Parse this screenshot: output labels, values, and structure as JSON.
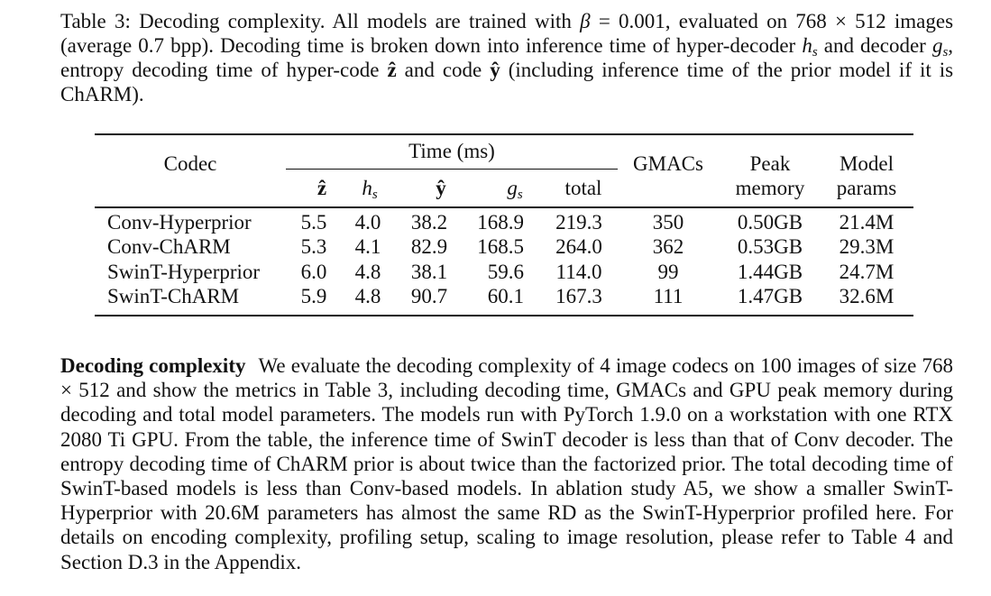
{
  "caption": {
    "label": "Table 3:",
    "title": "Decoding complexity.",
    "s1": "All models are trained with",
    "beta_sym": "β",
    "eq": "=",
    "beta_val": "0.001",
    "s2": ", evaluated on 768 × 512 images (average 0.7 bpp). Decoding time is broken down into inference time of hyper-decoder",
    "hs_base": "h",
    "hs_sub": "s",
    "s3": "and decoder",
    "gs_base": "g",
    "gs_sub": "s",
    "s4": ", entropy decoding time of hyper-code",
    "zhat": "ẑ",
    "s5": "and code",
    "yhat": "ŷ",
    "s6": "(including inference time of the prior model if it is ChARM)."
  },
  "table": {
    "header": {
      "codec": "Codec",
      "time_group": "Time (ms)",
      "gmacs": "GMACs",
      "peak_line1": "Peak",
      "peak_line2": "memory",
      "model_line1": "Model",
      "model_line2": "params",
      "col_z": "ẑ",
      "col_hs_base": "h",
      "col_hs_sub": "s",
      "col_y": "ŷ",
      "col_gs_base": "g",
      "col_gs_sub": "s",
      "col_total": "total"
    },
    "rows": [
      {
        "codec": "Conv-Hyperprior",
        "z": "5.5",
        "hs": "4.0",
        "y": "38.2",
        "gs": "168.9",
        "total": "219.3",
        "gmacs": "350",
        "peak": "0.50GB",
        "params": "21.4M"
      },
      {
        "codec": "Conv-ChARM",
        "z": "5.3",
        "hs": "4.1",
        "y": "82.9",
        "gs": "168.5",
        "total": "264.0",
        "gmacs": "362",
        "peak": "0.53GB",
        "params": "29.3M"
      },
      {
        "codec": "SwinT-Hyperprior",
        "z": "6.0",
        "hs": "4.8",
        "y": "38.1",
        "gs": "59.6",
        "total": "114.0",
        "gmacs": "99",
        "peak": "1.44GB",
        "params": "24.7M"
      },
      {
        "codec": "SwinT-ChARM",
        "z": "5.9",
        "hs": "4.8",
        "y": "90.7",
        "gs": "60.1",
        "total": "167.3",
        "gmacs": "111",
        "peak": "1.47GB",
        "params": "32.6M"
      }
    ]
  },
  "paragraph": {
    "heading": "Decoding complexity",
    "body": "We evaluate the decoding complexity of 4 image codecs on 100 images of size 768 × 512 and show the metrics in Table 3, including decoding time, GMACs and GPU peak memory during decoding and total model parameters. The models run with PyTorch 1.9.0 on a workstation with one RTX 2080 Ti GPU. From the table, the inference time of SwinT decoder is less than that of Conv decoder. The entropy decoding time of ChARM prior is about twice than the factorized prior. The total decoding time of SwinT-based models is less than Conv-based models. In ablation study A5, we show a smaller SwinT-Hyperprior with 20.6M parameters has almost the same RD as the SwinT-Hyperprior profiled here. For details on encoding complexity, profiling setup, scaling to image resolution, please refer to Table 4 and Section D.3 in the Appendix."
  }
}
